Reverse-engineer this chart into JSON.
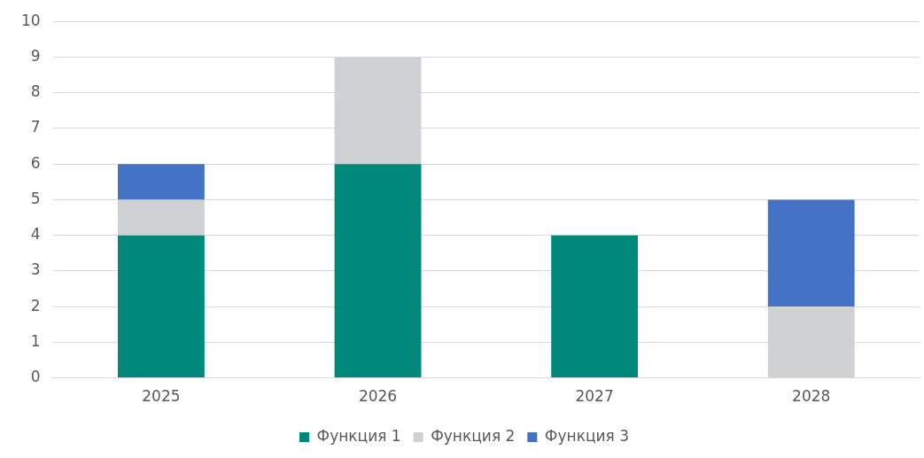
{
  "chart_data": {
    "type": "bar",
    "stacked": true,
    "categories": [
      "2025",
      "2026",
      "2027",
      "2028"
    ],
    "series": [
      {
        "name": "Функция 1",
        "color": "#00897b",
        "values": [
          4,
          6,
          4,
          0
        ]
      },
      {
        "name": "Функция 2",
        "color": "#d0d1d3",
        "values": [
          1,
          3,
          0,
          2
        ]
      },
      {
        "name": "Функция 3",
        "color": "#4472c4",
        "values": [
          1,
          0,
          0,
          3
        ]
      }
    ],
    "ylim": [
      0,
      10
    ],
    "yticks": [
      0,
      1,
      2,
      3,
      4,
      5,
      6,
      7,
      8,
      9,
      10
    ],
    "grid": "y",
    "legend": "bottom"
  }
}
